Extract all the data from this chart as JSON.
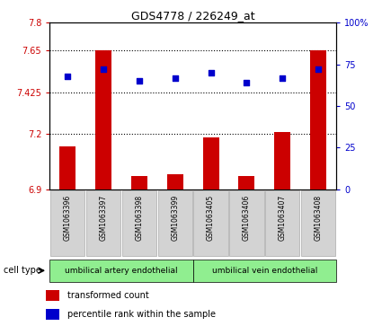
{
  "title": "GDS4778 / 226249_at",
  "samples": [
    "GSM1063396",
    "GSM1063397",
    "GSM1063398",
    "GSM1063399",
    "GSM1063405",
    "GSM1063406",
    "GSM1063407",
    "GSM1063408"
  ],
  "transformed_count": [
    7.13,
    7.65,
    6.97,
    6.98,
    7.18,
    6.97,
    7.21,
    7.65
  ],
  "percentile_rank": [
    68,
    72,
    65,
    67,
    70,
    64,
    67,
    72
  ],
  "ylim_left": [
    6.9,
    7.8
  ],
  "ylim_right": [
    0,
    100
  ],
  "yticks_left": [
    6.9,
    7.2,
    7.425,
    7.65,
    7.8
  ],
  "ytick_labels_left": [
    "6.9",
    "7.2",
    "7.425",
    "7.65",
    "7.8"
  ],
  "yticks_right": [
    0,
    25,
    50,
    75,
    100
  ],
  "ytick_labels_right": [
    "0",
    "25",
    "50",
    "75",
    "100%"
  ],
  "bar_color": "#cc0000",
  "dot_color": "#0000cc",
  "bar_bottom": 6.9,
  "group1_label": "umbilical artery endothelial",
  "group2_label": "umbilical vein endothelial",
  "cell_type_label": "cell type",
  "legend_bar_label": "transformed count",
  "legend_dot_label": "percentile rank within the sample",
  "cell_type_bg": "#90ee90",
  "sample_bg": "#d3d3d3",
  "figsize": [
    4.25,
    3.63
  ],
  "dpi": 100
}
